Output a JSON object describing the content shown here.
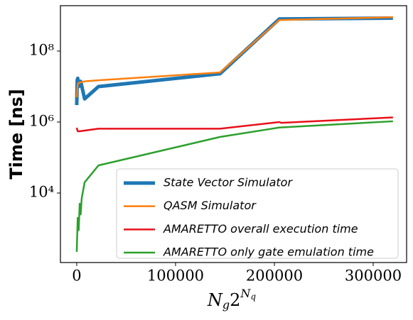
{
  "chart_data": {
    "type": "line",
    "ylabel": "Time [ns]",
    "xlabel_parts": [
      "N",
      "g",
      "2",
      "N",
      "q"
    ],
    "log_y": true,
    "legend_loc": "lower right",
    "xlim": [
      -16500,
      333800
    ],
    "ylim": [
      110,
      1900000000
    ],
    "xticks": [
      0,
      100000,
      200000,
      300000
    ],
    "yticks": [
      {
        "value": 10000,
        "label": "10⁴"
      },
      {
        "value": 1000000,
        "label": "10⁶"
      },
      {
        "value": 100000000,
        "label": "10⁸"
      }
    ],
    "series": [
      {
        "name": "State Vector Simulator",
        "color": "#1f77b4",
        "width": 5,
        "x": [
          0,
          500,
          1000,
          2000,
          4000,
          8000,
          22000,
          145000,
          205000,
          320000
        ],
        "values": [
          3000000,
          15000000,
          17000000,
          10000000,
          14000000,
          4500000,
          10000000,
          23000000,
          800000000,
          850000000
        ]
      },
      {
        "name": "QASM Simulator",
        "color": "#ff7f0e",
        "width": 2.5,
        "x": [
          0,
          1000,
          3000,
          8000,
          22000,
          145000,
          205000,
          320000
        ],
        "values": [
          5000000,
          12000000,
          13000000,
          14000000,
          15000000,
          25000000,
          750000000,
          900000000
        ]
      },
      {
        "name": "AMARETTO overall execution time",
        "color": "#e8101a",
        "width": 2.5,
        "x": [
          0,
          1000,
          3000,
          22000,
          145000,
          205000,
          207000,
          320000
        ],
        "values": [
          690000,
          550000,
          550000,
          650000,
          650000,
          1000000,
          950000,
          1350000
        ]
      },
      {
        "name": "AMARETTO only gate emulation time",
        "color": "#2ca02c",
        "width": 2.5,
        "x": [
          0,
          1000,
          2000,
          3000,
          4000,
          5000,
          8000,
          22000,
          145000,
          205000,
          320000
        ],
        "values": [
          220,
          2000,
          900,
          5000,
          2500,
          7000,
          20000,
          60000,
          380000,
          700000,
          1050000
        ]
      }
    ]
  }
}
